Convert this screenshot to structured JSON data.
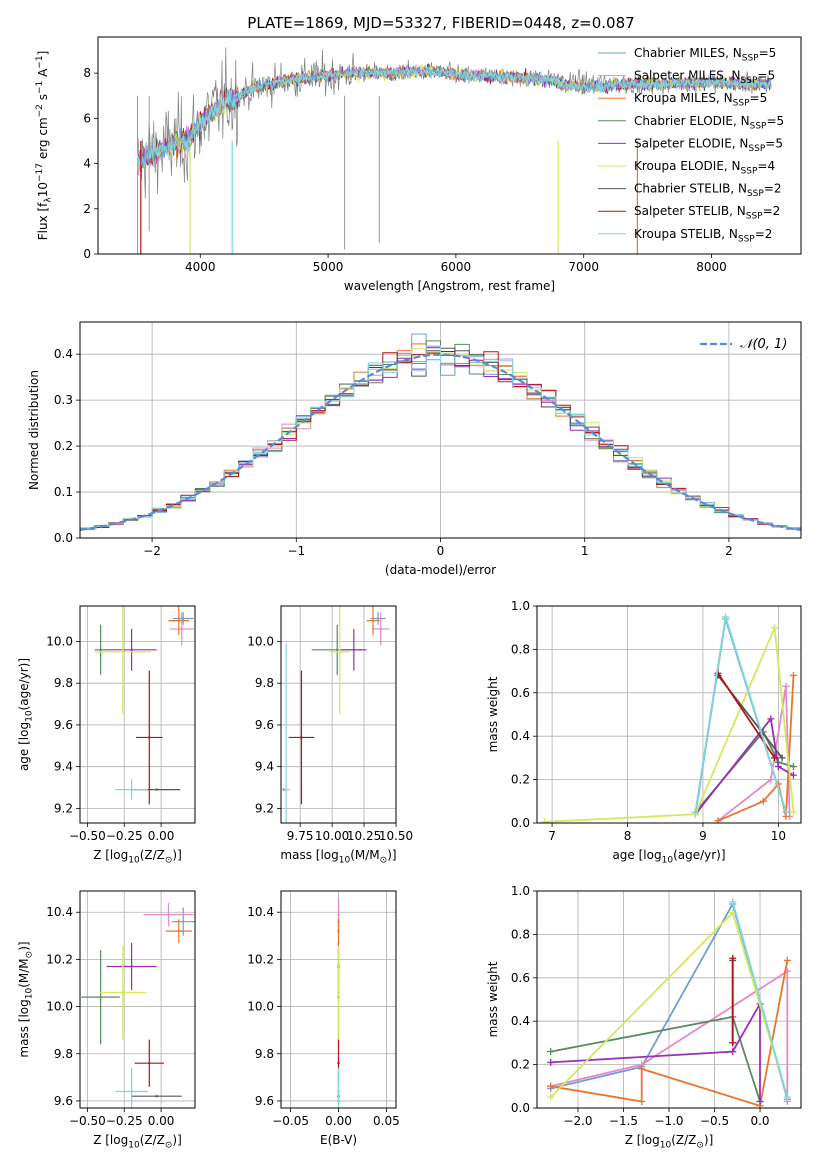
{
  "title": "PLATE=1869, MJD=53327, FIBERID=0448, z=0.087",
  "colors": {
    "Chabrier MILES": "#6f9fd9",
    "Salpeter MILES": "#e58ac7",
    "Kroupa MILES": "#e8762c",
    "Chabrier ELODIE": "#5a8a5f",
    "Salpeter ELODIE": "#9b2fb5",
    "Kroupa ELODIE": "#d5e85c",
    "Chabrier STELIB": "#555555",
    "Salpeter STELIB": "#b21414",
    "Kroupa STELIB": "#7fd6df",
    "data": "#808080",
    "normal": "#5b8bd8"
  },
  "chart_data": [
    {
      "type": "line",
      "ylabel": "Flux [f_λ 10^-17 erg cm^-2 s^-1 A^-1]",
      "xlabel": "wavelength [Angstrom, rest frame]",
      "xlim": [
        3200,
        8700
      ],
      "ylim": [
        0,
        9.6
      ],
      "xticks": [
        4000,
        5000,
        6000,
        7000,
        8000
      ],
      "yticks": [
        0,
        2,
        4,
        6,
        8
      ],
      "data_range": [
        3510,
        8470
      ],
      "legend": [
        {
          "name": "Chabrier MILES",
          "nssp": "5"
        },
        {
          "name": "Salpeter MILES",
          "nssp": "5"
        },
        {
          "name": "Kroupa MILES",
          "nssp": "5"
        },
        {
          "name": "Chabrier ELODIE",
          "nssp": "5"
        },
        {
          "name": "Salpeter ELODIE",
          "nssp": "5"
        },
        {
          "name": "Kroupa ELODIE",
          "nssp": "4"
        },
        {
          "name": "Chabrier STELIB",
          "nssp": "2"
        },
        {
          "name": "Salpeter STELIB",
          "nssp": "2"
        },
        {
          "name": "Kroupa STELIB",
          "nssp": "2"
        }
      ],
      "continuum": [
        [
          3510,
          4.0
        ],
        [
          3600,
          4.4
        ],
        [
          3700,
          4.6
        ],
        [
          3800,
          4.9
        ],
        [
          3900,
          5.0
        ],
        [
          4000,
          5.8
        ],
        [
          4100,
          6.3
        ],
        [
          4200,
          6.8
        ],
        [
          4300,
          7.0
        ],
        [
          4400,
          7.3
        ],
        [
          4600,
          7.6
        ],
        [
          4800,
          7.8
        ],
        [
          5000,
          7.9
        ],
        [
          5200,
          8.0
        ],
        [
          5500,
          8.0
        ],
        [
          5800,
          8.1
        ],
        [
          6100,
          7.9
        ],
        [
          6500,
          7.8
        ],
        [
          7000,
          7.6
        ],
        [
          7500,
          7.5
        ],
        [
          8000,
          7.6
        ],
        [
          8470,
          7.5
        ]
      ]
    },
    {
      "type": "line",
      "xlabel": "(data-model)/error",
      "ylabel": "Normed distribution",
      "xlim": [
        -2.5,
        2.5
      ],
      "ylim": [
        0,
        0.47
      ],
      "xticks": [
        -2,
        -1,
        0,
        1,
        2
      ],
      "yticks": [
        0.0,
        0.1,
        0.2,
        0.3,
        0.4
      ],
      "legend": "𝒩(0, 1)",
      "bin_width": 0.1
    },
    {
      "type": "scatter",
      "xlabel": "Z [log10(Z/Z⊙)]",
      "ylabel": "age  [log10(age/yr)]",
      "xlim": [
        -0.55,
        0.23
      ],
      "ylim": [
        9.13,
        10.17
      ],
      "xticks": [
        -0.5,
        -0.25,
        0.0
      ],
      "yticks": [
        9.2,
        9.4,
        9.6,
        9.8,
        10.0
      ],
      "points": [
        {
          "model": "Chabrier MILES",
          "x": 0.15,
          "y": 10.11,
          "xerr": 0.07,
          "yerr": 0.03
        },
        {
          "model": "Salpeter MILES",
          "x": 0.14,
          "y": 10.06,
          "xerr": 0.08,
          "yerr": 0.08
        },
        {
          "model": "Kroupa MILES",
          "x": 0.12,
          "y": 10.1,
          "xerr": 0.07,
          "yerr": 0.07
        },
        {
          "model": "Chabrier ELODIE",
          "x": -0.41,
          "y": 9.96,
          "xerr": 0.04,
          "yerr": 0.12
        },
        {
          "model": "Salpeter ELODIE",
          "x": -0.2,
          "y": 9.96,
          "xerr": 0.17,
          "yerr": 0.1
        },
        {
          "model": "Kroupa ELODIE",
          "x": -0.26,
          "y": 9.95,
          "xerr": 0.19,
          "yerr": 0.3
        },
        {
          "model": "Chabrier STELIB",
          "x": -0.03,
          "y": 9.29,
          "xerr": 0.16,
          "yerr": 0.0
        },
        {
          "model": "Salpeter STELIB",
          "x": -0.08,
          "y": 9.54,
          "xerr": 0.09,
          "yerr": 0.32
        },
        {
          "model": "Kroupa STELIB",
          "x": -0.2,
          "y": 9.29,
          "xerr": 0.11,
          "yerr": 0.05
        }
      ]
    },
    {
      "type": "scatter",
      "xlabel": "mass [log10(M/M⊙)]",
      "xlim": [
        9.6,
        10.5
      ],
      "ylim": [
        9.13,
        10.17
      ],
      "xticks": [
        9.75,
        10.0,
        10.25,
        10.5
      ],
      "yticks": [
        9.2,
        9.4,
        9.6,
        9.8,
        10.0
      ],
      "points": [
        {
          "model": "Chabrier MILES",
          "x": 10.36,
          "y": 10.11,
          "xerr": 0.06,
          "yerr": 0.03
        },
        {
          "model": "Salpeter MILES",
          "x": 10.38,
          "y": 10.06,
          "xerr": 0.07,
          "yerr": 0.08
        },
        {
          "model": "Kroupa MILES",
          "x": 10.32,
          "y": 10.1,
          "xerr": 0.05,
          "yerr": 0.07
        },
        {
          "model": "Chabrier ELODIE",
          "x": 10.04,
          "y": 9.96,
          "xerr": 0.2,
          "yerr": 0.12
        },
        {
          "model": "Salpeter ELODIE",
          "x": 10.17,
          "y": 9.96,
          "xerr": 0.1,
          "yerr": 0.1
        },
        {
          "model": "Kroupa ELODIE",
          "x": 10.06,
          "y": 9.95,
          "xerr": 0.08,
          "yerr": 0.3
        },
        {
          "model": "Chabrier STELIB",
          "x": 9.62,
          "y": 9.29,
          "xerr": 0.0,
          "yerr": 0.0
        },
        {
          "model": "Salpeter STELIB",
          "x": 9.76,
          "y": 9.54,
          "xerr": 0.1,
          "yerr": 0.32
        },
        {
          "model": "Kroupa STELIB",
          "x": 9.64,
          "y": 9.29,
          "xerr": 0.03,
          "yerr": 0.7
        }
      ]
    },
    {
      "type": "line",
      "xlabel": "age  [log10(age/yr)]",
      "ylabel": "mass weight",
      "xlim": [
        6.8,
        10.3
      ],
      "ylim": [
        0,
        1.0
      ],
      "xticks": [
        7,
        8,
        9,
        10
      ],
      "yticks": [
        0.0,
        0.2,
        0.4,
        0.6,
        0.8,
        1.0
      ],
      "series": [
        {
          "model": "Chabrier MILES",
          "points": [
            [
              8.9,
              0.04
            ],
            [
              9.3,
              0.94
            ],
            [
              10.1,
              0.05
            ]
          ]
        },
        {
          "model": "Salpeter MILES",
          "points": [
            [
              9.2,
              0.01
            ],
            [
              9.9,
              0.2
            ],
            [
              10.1,
              0.63
            ],
            [
              10.15,
              0.03
            ]
          ]
        },
        {
          "model": "Kroupa MILES",
          "points": [
            [
              9.2,
              0.01
            ],
            [
              9.8,
              0.1
            ],
            [
              10.0,
              0.18
            ],
            [
              10.1,
              0.03
            ],
            [
              10.2,
              0.68
            ]
          ]
        },
        {
          "model": "Chabrier ELODIE",
          "points": [
            [
              8.9,
              0.05
            ],
            [
              9.8,
              0.42
            ],
            [
              10.0,
              0.28
            ],
            [
              10.2,
              0.26
            ]
          ]
        },
        {
          "model": "Salpeter ELODIE",
          "points": [
            [
              8.9,
              0.04
            ],
            [
              9.9,
              0.48
            ],
            [
              10.0,
              0.26
            ],
            [
              10.2,
              0.22
            ]
          ]
        },
        {
          "model": "Kroupa ELODIE",
          "points": [
            [
              6.9,
              0.005
            ],
            [
              8.9,
              0.04
            ],
            [
              9.95,
              0.9
            ],
            [
              10.2,
              0.05
            ]
          ]
        },
        {
          "model": "Chabrier STELIB",
          "points": [
            [
              9.2,
              0.68
            ],
            [
              10.05,
              0.3
            ]
          ]
        },
        {
          "model": "Salpeter STELIB",
          "points": [
            [
              9.2,
              0.69
            ],
            [
              9.95,
              0.3
            ]
          ]
        },
        {
          "model": "Kroupa STELIB",
          "points": [
            [
              8.9,
              0.05
            ],
            [
              9.3,
              0.95
            ],
            [
              10.1,
              0.05
            ]
          ]
        }
      ]
    },
    {
      "type": "scatter",
      "xlabel": "Z [log10(Z/Z⊙)]",
      "ylabel": "mass [log10(M/M⊙)]",
      "xlim": [
        -0.55,
        0.23
      ],
      "ylim": [
        9.57,
        10.49
      ],
      "xticks": [
        -0.5,
        -0.25,
        0.0
      ],
      "yticks": [
        9.6,
        9.8,
        10.0,
        10.2,
        10.4
      ],
      "points": [
        {
          "model": "Chabrier MILES",
          "x": 0.15,
          "y": 10.36,
          "xerr": 0.08,
          "yerr": 0.06
        },
        {
          "model": "Salpeter MILES",
          "x": 0.05,
          "y": 10.39,
          "xerr": 0.17,
          "yerr": 0.05
        },
        {
          "model": "Kroupa MILES",
          "x": 0.12,
          "y": 10.32,
          "xerr": 0.09,
          "yerr": 0.05
        },
        {
          "model": "Chabrier ELODIE",
          "x": -0.41,
          "y": 10.04,
          "xerr": 0.13,
          "yerr": 0.2
        },
        {
          "model": "Salpeter ELODIE",
          "x": -0.2,
          "y": 10.17,
          "xerr": 0.17,
          "yerr": 0.1
        },
        {
          "model": "Kroupa ELODIE",
          "x": -0.26,
          "y": 10.06,
          "xerr": 0.16,
          "yerr": 0.2
        },
        {
          "model": "Chabrier STELIB",
          "x": -0.03,
          "y": 9.62,
          "xerr": 0.17,
          "yerr": 0.0
        },
        {
          "model": "Salpeter STELIB",
          "x": -0.08,
          "y": 9.76,
          "xerr": 0.1,
          "yerr": 0.1
        },
        {
          "model": "Kroupa STELIB",
          "x": -0.2,
          "y": 9.64,
          "xerr": 0.11,
          "yerr": 0.1
        }
      ]
    },
    {
      "type": "scatter",
      "xlabel": "E(B-V)",
      "xlim": [
        -0.06,
        0.06
      ],
      "ylim": [
        9.57,
        10.49
      ],
      "xticks": [
        -0.05,
        0.0,
        0.05
      ],
      "yticks": [
        9.6,
        9.8,
        10.0,
        10.2,
        10.4
      ],
      "points": [
        {
          "model": "Chabrier MILES",
          "x": 0.0,
          "y": 10.36,
          "yerr": 0.06
        },
        {
          "model": "Salpeter MILES",
          "x": 0.0,
          "y": 10.39,
          "yerr": 0.07
        },
        {
          "model": "Kroupa MILES",
          "x": 0.0,
          "y": 10.32,
          "yerr": 0.05
        },
        {
          "model": "Chabrier ELODIE",
          "x": 0.0,
          "y": 10.04,
          "yerr": 0.2
        },
        {
          "model": "Salpeter ELODIE",
          "x": 0.0,
          "y": 10.17,
          "yerr": 0.1
        },
        {
          "model": "Kroupa ELODIE",
          "x": 0.0,
          "y": 10.06,
          "yerr": 0.2
        },
        {
          "model": "Chabrier STELIB",
          "x": 0.0,
          "y": 9.62,
          "yerr": 0.03
        },
        {
          "model": "Salpeter STELIB",
          "x": 0.0,
          "y": 9.76,
          "yerr": 0.1
        },
        {
          "model": "Kroupa STELIB",
          "x": 0.0,
          "y": 9.64,
          "yerr": 0.1
        }
      ]
    },
    {
      "type": "line",
      "xlabel": "Z [log10(Z/Z⊙)]",
      "ylabel": "mass weight",
      "xlim": [
        -2.45,
        0.45
      ],
      "ylim": [
        0,
        1.0
      ],
      "xticks": [
        -2.0,
        -1.5,
        -1.0,
        -0.5,
        0.0
      ],
      "yticks": [
        0.0,
        0.2,
        0.4,
        0.6,
        0.8,
        1.0
      ],
      "series": [
        {
          "model": "Chabrier MILES",
          "points": [
            [
              -2.3,
              0.09
            ],
            [
              -1.3,
              0.19
            ],
            [
              -0.3,
              0.94
            ],
            [
              0.3,
              0.04
            ]
          ]
        },
        {
          "model": "Salpeter MILES",
          "points": [
            [
              -2.3,
              0.1
            ],
            [
              -1.3,
              0.2
            ],
            [
              0.3,
              0.63
            ],
            [
              0.3,
              0.03
            ]
          ]
        },
        {
          "model": "Kroupa MILES",
          "points": [
            [
              -2.3,
              0.1
            ],
            [
              -1.3,
              0.03
            ],
            [
              -1.3,
              0.18
            ],
            [
              0.0,
              0.01
            ],
            [
              0.3,
              0.68
            ]
          ]
        },
        {
          "model": "Chabrier ELODIE",
          "points": [
            [
              -2.3,
              0.26
            ],
            [
              -0.3,
              0.42
            ],
            [
              0.0,
              0.03
            ]
          ]
        },
        {
          "model": "Salpeter ELODIE",
          "points": [
            [
              -2.3,
              0.21
            ],
            [
              -0.3,
              0.26
            ],
            [
              0.0,
              0.48
            ],
            [
              0.0,
              0.03
            ]
          ]
        },
        {
          "model": "Kroupa ELODIE",
          "points": [
            [
              -2.3,
              0.05
            ],
            [
              -0.3,
              0.9
            ],
            [
              0.3,
              0.05
            ]
          ]
        },
        {
          "model": "Chabrier STELIB",
          "points": [
            [
              -0.3,
              0.68
            ],
            [
              -0.3,
              0.3
            ]
          ]
        },
        {
          "model": "Salpeter STELIB",
          "points": [
            [
              -0.3,
              0.69
            ],
            [
              -0.3,
              0.3
            ]
          ]
        },
        {
          "model": "Kroupa STELIB",
          "points": [
            [
              -0.3,
              0.95
            ],
            [
              0.3,
              0.05
            ]
          ]
        }
      ]
    }
  ]
}
